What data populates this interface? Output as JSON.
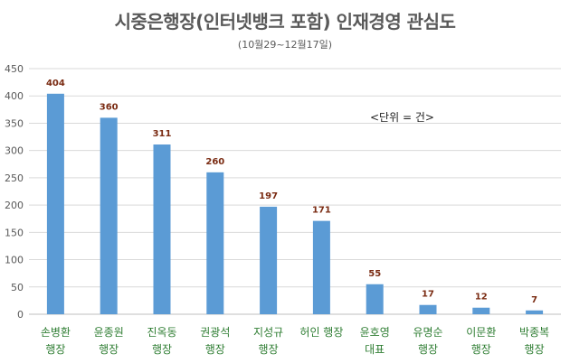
{
  "chart_data": {
    "type": "bar",
    "title": "시중은행장(인터넷뱅크 포함) 인재경영 관심도",
    "subtitle": "(10월29~12월17일)",
    "annotation": "<단위 = 건>",
    "categories": [
      [
        "손병환",
        "행장"
      ],
      [
        "윤종원",
        "행장"
      ],
      [
        "진옥동",
        "행장"
      ],
      [
        "권광석",
        "행장"
      ],
      [
        "지성규",
        "행장"
      ],
      [
        "허인 행장"
      ],
      [
        "윤호영",
        "대표"
      ],
      [
        "유명순",
        "행장"
      ],
      [
        "이문환",
        "행장"
      ],
      [
        "박종복",
        "행장"
      ]
    ],
    "values": [
      404,
      360,
      311,
      260,
      197,
      171,
      55,
      17,
      12,
      7
    ],
    "y_ticks": [
      0,
      50,
      100,
      150,
      200,
      250,
      300,
      350,
      400,
      450
    ],
    "ylim": [
      0,
      450
    ],
    "grid": true,
    "bar_color": "#5b9bd5",
    "label_color": "#7a2b12",
    "category_color": "#2e7d32"
  }
}
